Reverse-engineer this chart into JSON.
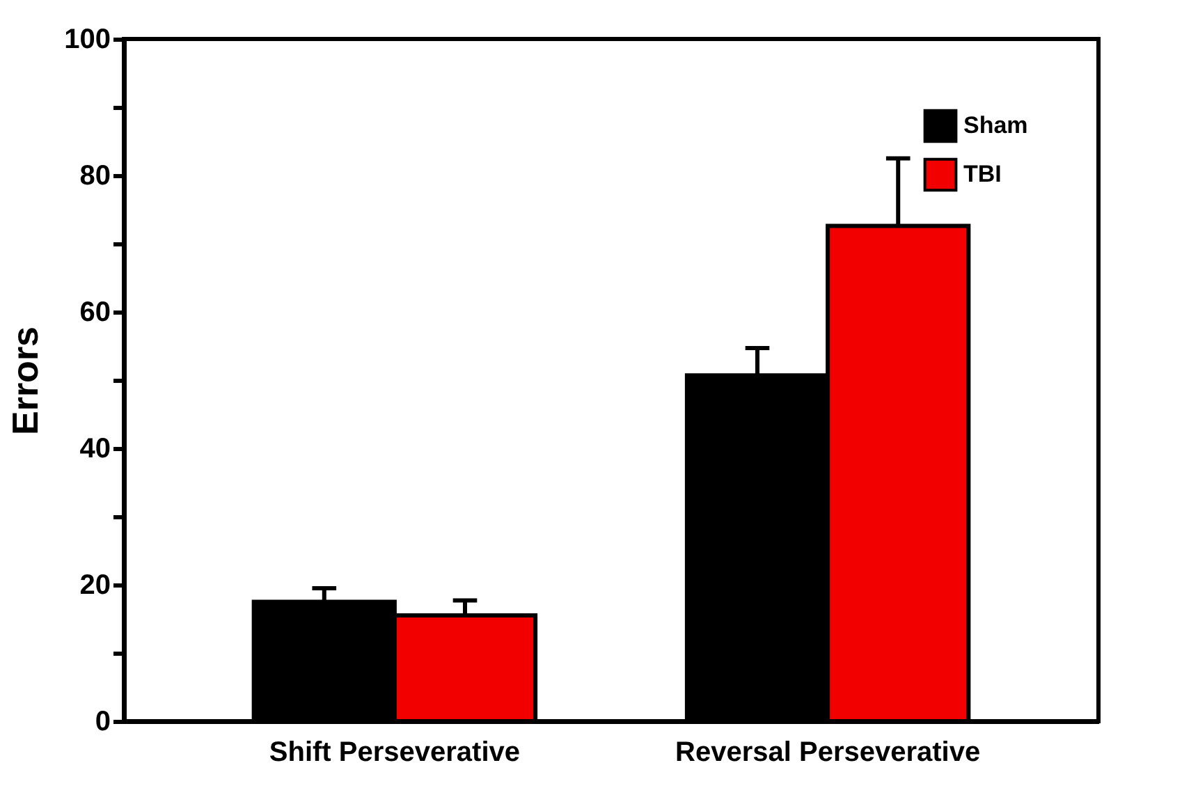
{
  "chart_data": {
    "type": "bar",
    "ylabel": "Errors",
    "categories": [
      "Shift Perseverative",
      "Reversal Perseverative"
    ],
    "series": [
      {
        "name": "Sham",
        "color": "#000000",
        "values": [
          17.5,
          50.7
        ],
        "errors": [
          [
            17.5,
            19.5
          ],
          [
            50.7,
            54.7
          ]
        ]
      },
      {
        "name": "TBI",
        "color": "#f20000",
        "values": [
          15.5,
          72.6
        ],
        "errors": [
          [
            15.5,
            17.7
          ],
          [
            72.6,
            82.5
          ]
        ]
      }
    ],
    "ylim": [
      0,
      100
    ],
    "yticks": [
      0,
      {
        "value": 10,
        "label": null
      },
      20,
      {
        "value": 30,
        "label": null
      },
      40,
      {
        "value": 50,
        "label": null
      },
      60,
      {
        "value": 70,
        "label": null
      },
      80,
      {
        "value": 90,
        "label": null
      },
      100
    ],
    "grid": false,
    "legend": "top right"
  }
}
